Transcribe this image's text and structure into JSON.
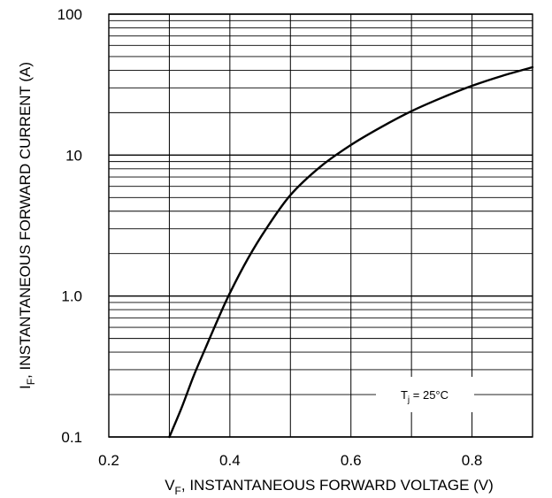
{
  "chart_data": {
    "type": "line",
    "xlabel": {
      "main": "V",
      "sub": "F",
      "rest": ", INSTANTANEOUS FORWARD VOLTAGE (V)"
    },
    "ylabel": {
      "main": "I",
      "sub": "F",
      "rest": ", INSTANTANEOUS FORWARD CURRENT (A)"
    },
    "xlim": [
      0.2,
      0.9
    ],
    "ylim": [
      0.1,
      100
    ],
    "yscale": "log",
    "grid": true,
    "x_ticks": [
      {
        "value": 0.2,
        "label": "0.2"
      },
      {
        "value": 0.4,
        "label": "0.4"
      },
      {
        "value": 0.6,
        "label": "0.6"
      },
      {
        "value": 0.8,
        "label": "0.8"
      }
    ],
    "y_ticks": [
      {
        "value": 0.1,
        "label": "0.1"
      },
      {
        "value": 1,
        "label": "1.0"
      },
      {
        "value": 10,
        "label": "10"
      },
      {
        "value": 100,
        "label": "100"
      }
    ],
    "annotation": {
      "main": "T",
      "sub": "j",
      "rest": " = 25°C"
    },
    "series": [
      {
        "x": [
          0.3,
          0.32,
          0.34,
          0.36,
          0.38,
          0.4,
          0.43,
          0.46,
          0.5,
          0.55,
          0.6,
          0.65,
          0.7,
          0.75,
          0.8,
          0.85,
          0.9
        ],
        "y": [
          0.1,
          0.16,
          0.27,
          0.43,
          0.68,
          1.05,
          1.85,
          3.0,
          5.2,
          8.3,
          11.8,
          15.8,
          20.5,
          25.5,
          31.0,
          36.5,
          42.0
        ]
      }
    ]
  }
}
